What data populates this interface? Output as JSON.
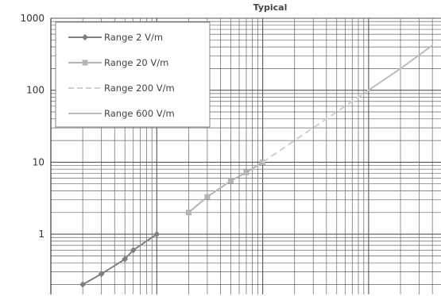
{
  "chart_data": {
    "type": "line",
    "title": "Typical",
    "xlabel": "",
    "ylabel": "",
    "xscale": "log",
    "yscale": "log",
    "xlim": [
      0.1,
      1000
    ],
    "ylim": [
      0.1,
      1000
    ],
    "grid": true,
    "legend_position": "top-left",
    "y_tick_labels": [
      "1000",
      "100",
      "10",
      "1"
    ],
    "series": [
      {
        "name": "Range 2 V/m",
        "color": "#7f7f7f",
        "marker": "diamond",
        "dash": "solid",
        "x": [
          0.2,
          0.3,
          0.5,
          0.6,
          1
        ],
        "y": [
          0.2,
          0.28,
          0.45,
          0.6,
          1
        ]
      },
      {
        "name": "Range 20 V/m",
        "color": "#b5b5b5",
        "marker": "square",
        "dash": "solid",
        "x": [
          2,
          3,
          5,
          7,
          10
        ],
        "y": [
          2,
          3.3,
          5.5,
          7.2,
          10
        ]
      },
      {
        "name": "Range 200 V/m",
        "color": "#cfcfcf",
        "marker": "none",
        "dash": "dashed",
        "x": [
          10,
          20,
          100
        ],
        "y": [
          10,
          20,
          100
        ]
      },
      {
        "name": "Range 600 V/m",
        "color": "#bdbdbd",
        "marker": "none",
        "dash": "solid",
        "x": [
          100,
          200,
          400
        ],
        "y": [
          100,
          200,
          420
        ]
      }
    ]
  }
}
